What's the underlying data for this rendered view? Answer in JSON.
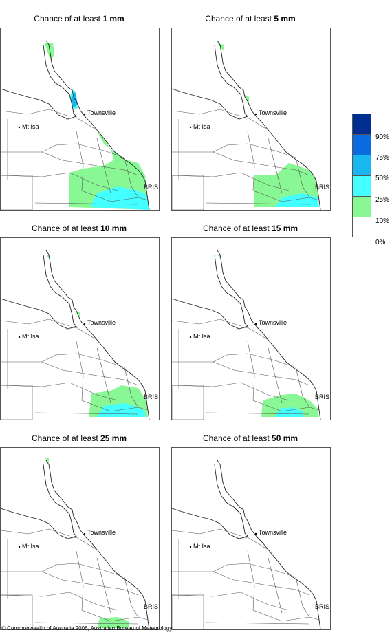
{
  "title_prefix": "Chance of at least",
  "panels": [
    {
      "amount": "1 mm"
    },
    {
      "amount": "5 mm"
    },
    {
      "amount": "10 mm"
    },
    {
      "amount": "15 mm"
    },
    {
      "amount": "25 mm"
    },
    {
      "amount": "50 mm"
    }
  ],
  "places": {
    "townsville": "Townsville",
    "mt_isa": "Mt Isa",
    "bris": "BRIS"
  },
  "legend": {
    "items": [
      {
        "label": "90%",
        "color": "#002f8f"
      },
      {
        "label": "75%",
        "color": "#0a6ae0"
      },
      {
        "label": "50%",
        "color": "#1ab6f0"
      },
      {
        "label": "25%",
        "color": "#44ffff"
      },
      {
        "label": "10%",
        "color": "#88f794"
      },
      {
        "label": "0%",
        "color": "#ffffff"
      }
    ]
  },
  "copyright": "© Commonwealth of Australia 2006, Australian Bureau of Meteorology"
}
